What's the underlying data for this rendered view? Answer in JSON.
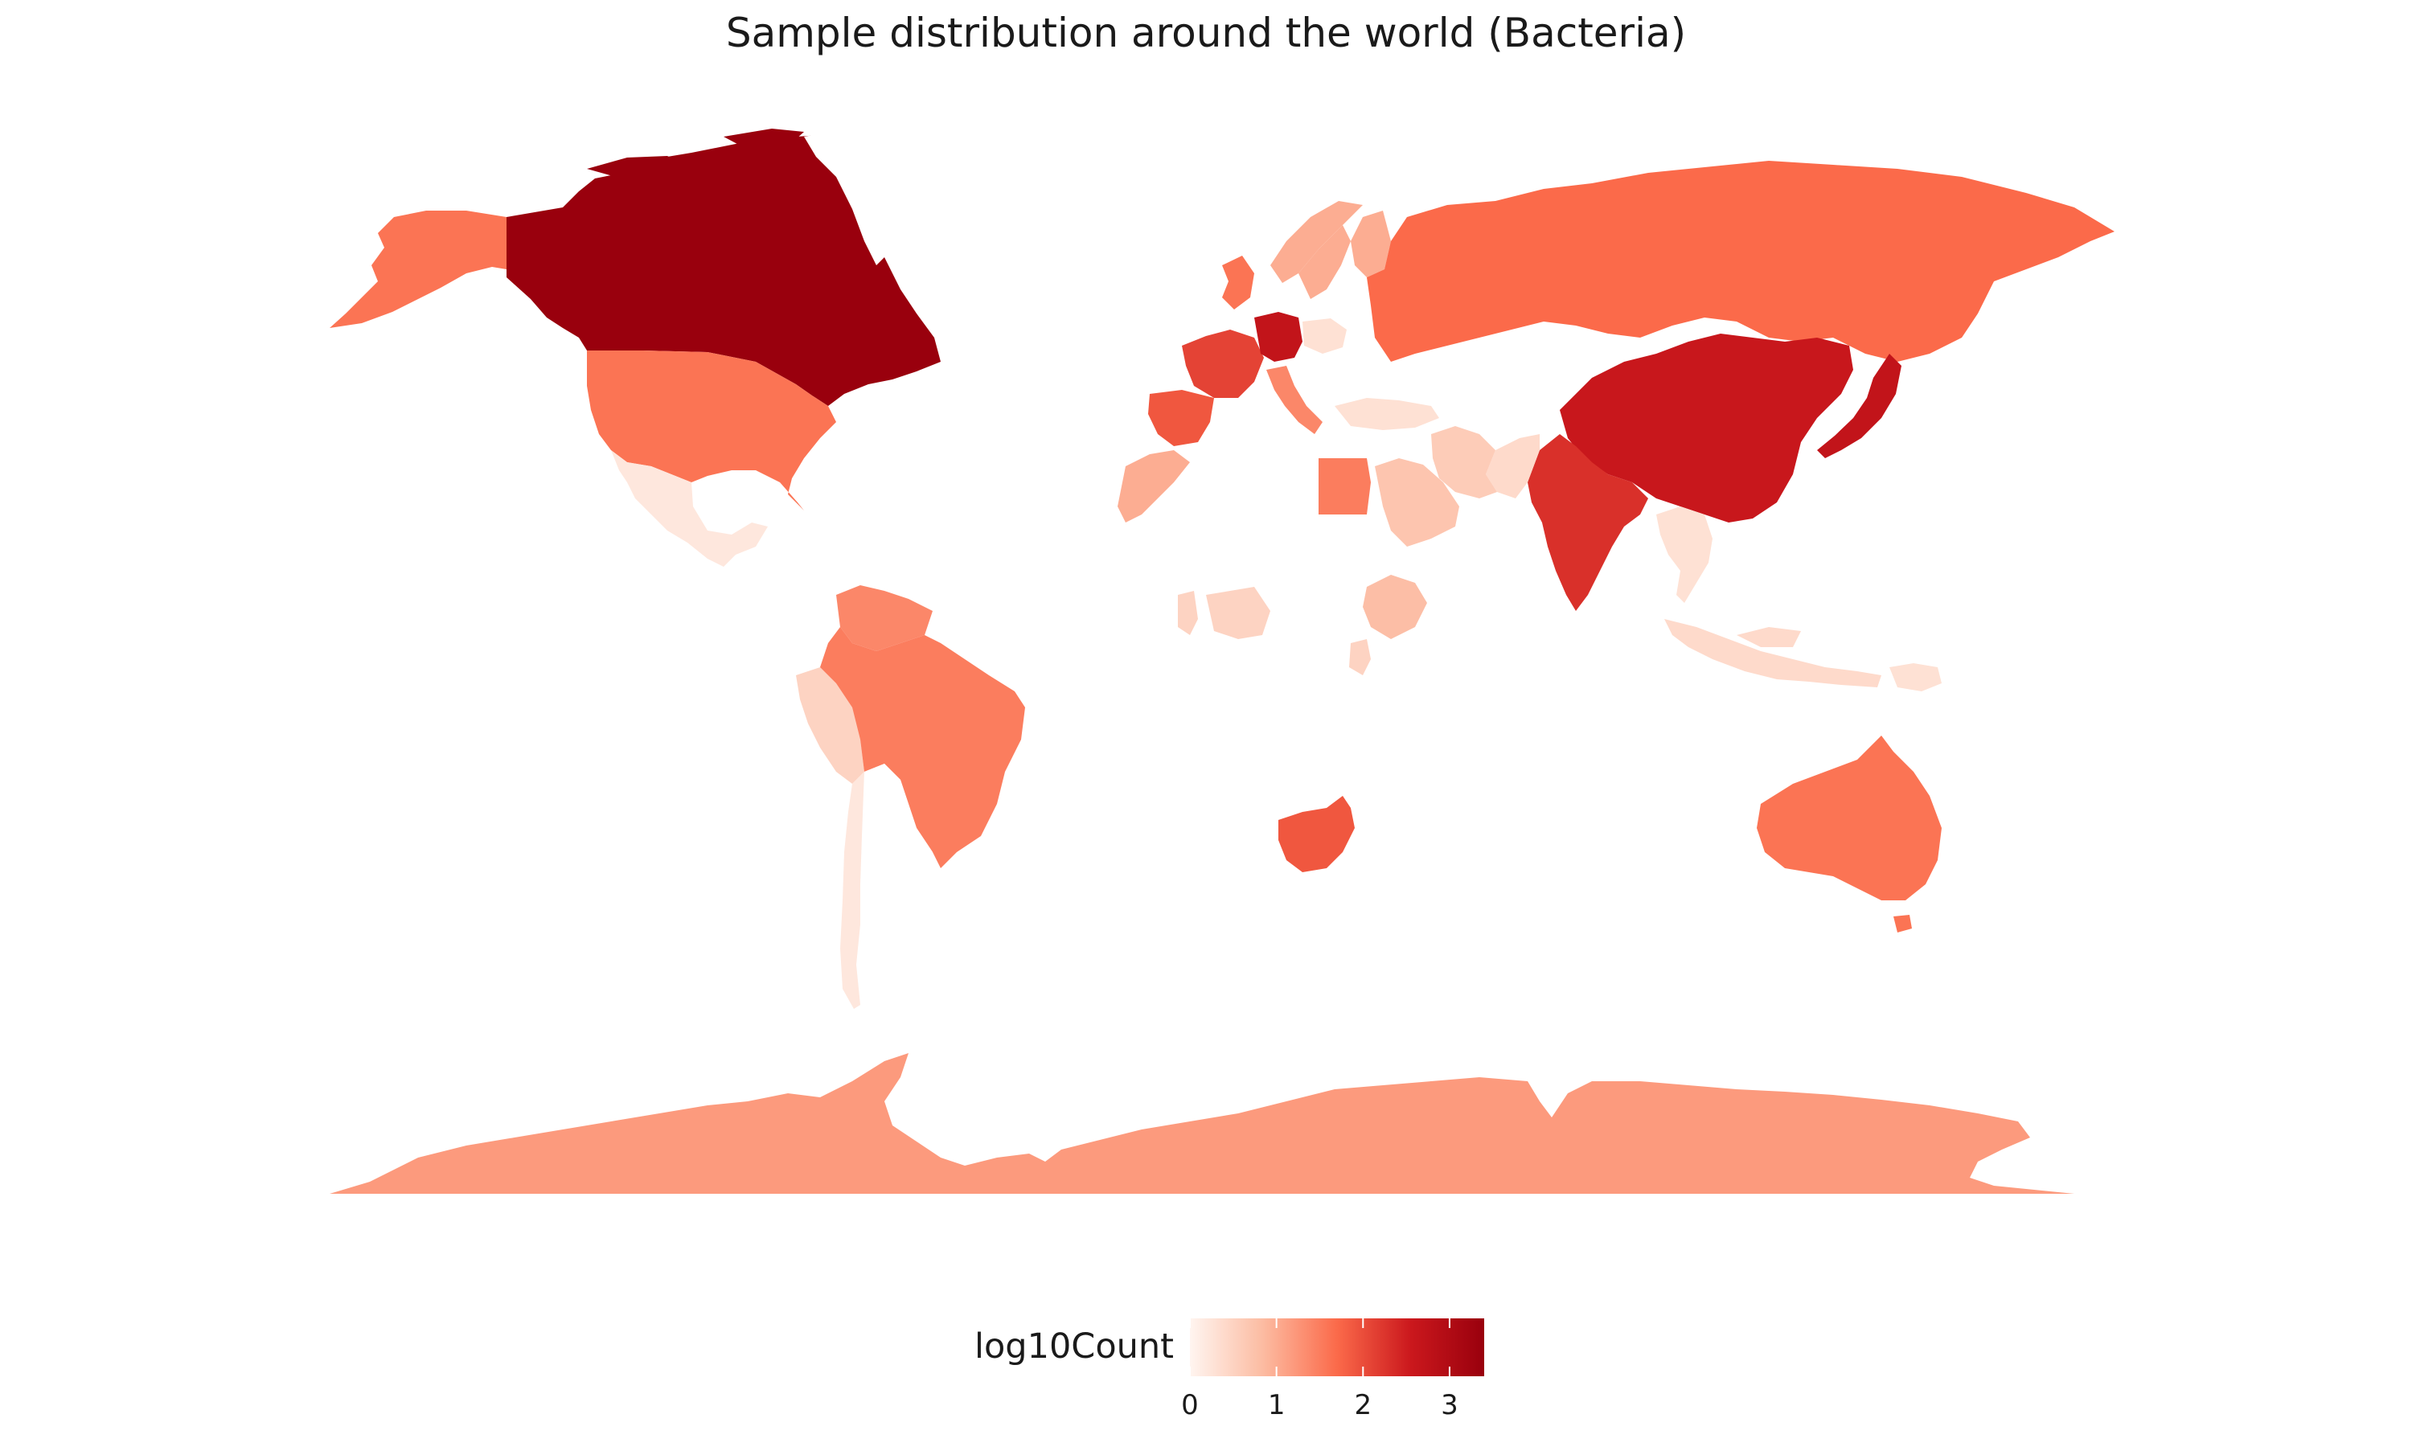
{
  "title": "Sample distribution around the world (Bacteria)",
  "map": {
    "projection": "equirectangular",
    "background": "#ffffff",
    "regions": [
      {
        "name": "Canada",
        "value": 3.4
      },
      {
        "name": "Alaska (United States)",
        "value": 1.6
      },
      {
        "name": "United States",
        "value": 1.6
      },
      {
        "name": "Mexico",
        "value": 0.2
      },
      {
        "name": "Greenland",
        "value": null
      },
      {
        "name": "Brazil",
        "value": 1.5
      },
      {
        "name": "Venezuela",
        "value": 1.4
      },
      {
        "name": "Peru",
        "value": 0.5
      },
      {
        "name": "Chile",
        "value": 0.2
      },
      {
        "name": "Argentina",
        "value": null
      },
      {
        "name": "Russia",
        "value": 1.7
      },
      {
        "name": "China",
        "value": 2.6
      },
      {
        "name": "India",
        "value": 2.3
      },
      {
        "name": "Japan",
        "value": 2.7
      },
      {
        "name": "Germany",
        "value": 2.7
      },
      {
        "name": "France",
        "value": 2.1
      },
      {
        "name": "Spain",
        "value": 1.9
      },
      {
        "name": "Italy",
        "value": 1.4
      },
      {
        "name": "United Kingdom",
        "value": 1.6
      },
      {
        "name": "Norway",
        "value": 1.0
      },
      {
        "name": "Sweden",
        "value": 1.0
      },
      {
        "name": "Finland",
        "value": 1.0
      },
      {
        "name": "Poland",
        "value": 0.3
      },
      {
        "name": "Turkey",
        "value": 0.3
      },
      {
        "name": "Egypt",
        "value": 1.5
      },
      {
        "name": "Morocco",
        "value": 1.0
      },
      {
        "name": "Saudi Arabia",
        "value": 0.7
      },
      {
        "name": "Iran",
        "value": 0.6
      },
      {
        "name": "Pakistan",
        "value": 0.4
      },
      {
        "name": "Thailand",
        "value": 0.3
      },
      {
        "name": "Indonesia",
        "value": 0.4
      },
      {
        "name": "Papua New Guinea",
        "value": 0.3
      },
      {
        "name": "Ethiopia",
        "value": 0.8
      },
      {
        "name": "Niger",
        "value": 0.5
      },
      {
        "name": "Ghana",
        "value": 0.5
      },
      {
        "name": "Kenya",
        "value": 0.5
      },
      {
        "name": "South Africa",
        "value": 1.9
      },
      {
        "name": "Australia",
        "value": 1.6
      },
      {
        "name": "Antarctica",
        "value": 1.2
      }
    ]
  },
  "legend": {
    "title": "log10Count",
    "type": "continuous",
    "position": "bottom",
    "min": 0,
    "max": 3.4,
    "ticks": [
      "0",
      "1",
      "2",
      "3"
    ],
    "tick_values": [
      0,
      1,
      2,
      3
    ],
    "colors": [
      "#fff5f0",
      "#fcbba1",
      "#fb6a4a",
      "#cb181d",
      "#99000d"
    ]
  }
}
